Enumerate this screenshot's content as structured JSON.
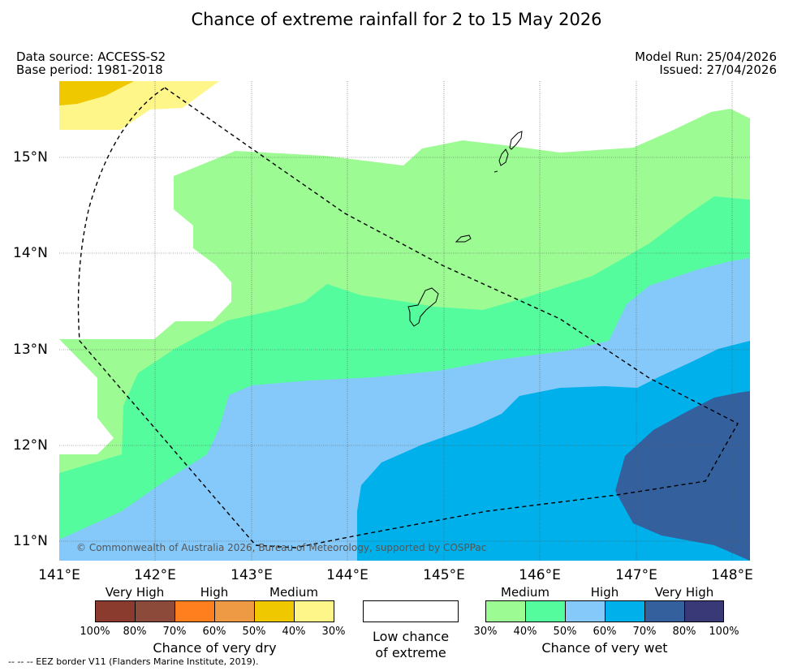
{
  "title": "Chance of extreme rainfall for 2 to 15 May 2026",
  "data_source": "Data source: ACCESS-S2",
  "base_period": "Base period: 1981-2018",
  "model_run": "Model Run: 25/04/2026",
  "issued": "Issued: 27/04/2026",
  "copyright": "© Commonwealth of Australia 2026, Bureau of Meteorology, supported by COSPPac",
  "lat_ticks": [
    "15°N",
    "14°N",
    "13°N",
    "12°N",
    "11°N"
  ],
  "lon_ticks": [
    "141°E",
    "142°E",
    "143°E",
    "144°E",
    "145°E",
    "146°E",
    "147°E",
    "148°E"
  ],
  "legend": {
    "dry": {
      "group_labels": [
        "Very High",
        "High",
        "Medium"
      ],
      "colors": [
        "#8b3a2e",
        "#8b4a3a",
        "#ff7f1e",
        "#ee9944",
        "#f0c800",
        "#fff68a"
      ],
      "ticks": [
        "100%",
        "80%",
        "70%",
        "60%",
        "50%",
        "40%",
        "30%"
      ],
      "title": "Chance of very dry"
    },
    "low": {
      "color": "#ffffff",
      "title_line1": "Low chance",
      "title_line2": "of extreme"
    },
    "wet": {
      "group_labels": [
        "Medium",
        "High",
        "Very High"
      ],
      "colors": [
        "#9dfb94",
        "#55fc9e",
        "#85c9fa",
        "#00b0ea",
        "#34609e",
        "#3a3978"
      ],
      "ticks": [
        "30%",
        "40%",
        "50%",
        "60%",
        "70%",
        "80%",
        "100%"
      ],
      "title": "Chance of very wet"
    }
  },
  "footer": "--  --  -- EEZ border V11 (Flanders Marine Institute, 2019)."
}
